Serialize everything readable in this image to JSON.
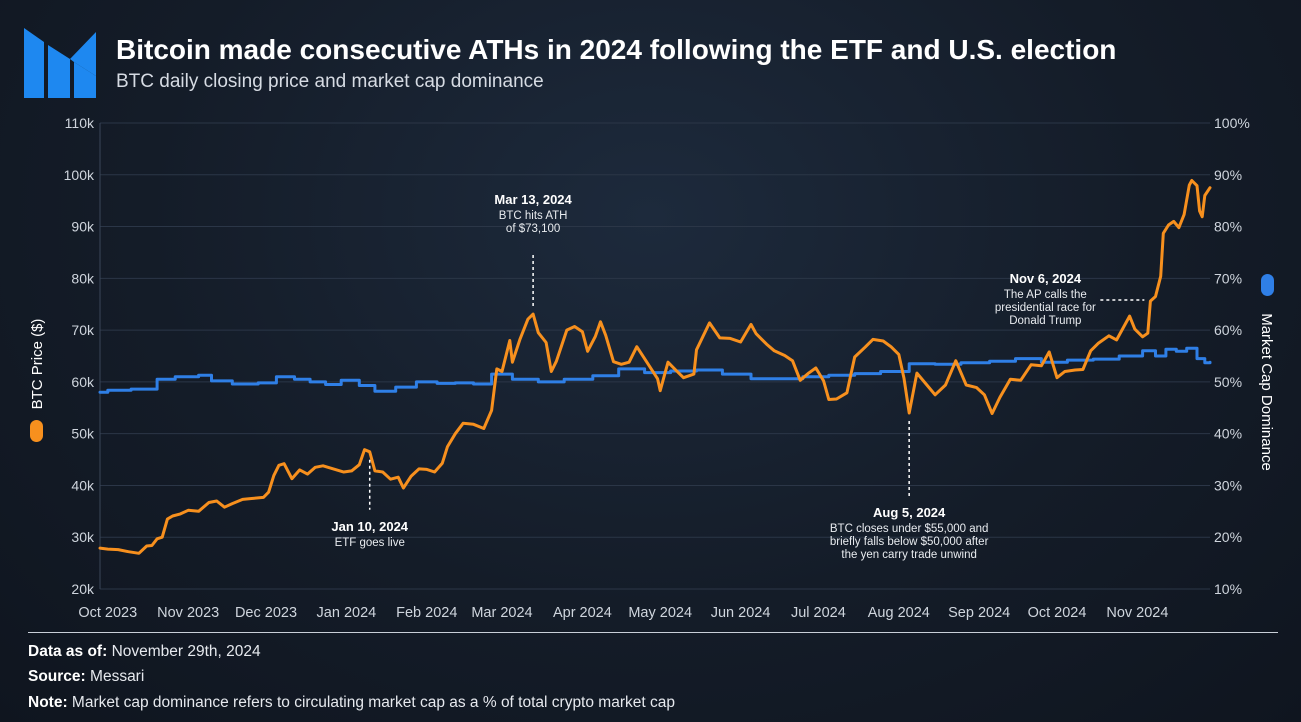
{
  "header": {
    "title": "Bitcoin made consecutive ATHs in 2024 following the ETF and U.S. election",
    "subtitle": "BTC daily closing price and market cap dominance"
  },
  "logo": {
    "icon": "messari-logo-icon",
    "color": "#1e88f0"
  },
  "colors": {
    "price": "#f7901e",
    "dominance": "#2f7fe6",
    "grid": "#2b3647",
    "axis_text": "#cfd5dd"
  },
  "chart_data": {
    "type": "line",
    "title": "Bitcoin made consecutive ATHs in 2024 following the ETF and U.S. election",
    "subtitle": "BTC daily closing price and market cap dominance",
    "xlabel": "",
    "y_left": {
      "label": "BTC Price ($)",
      "range": [
        20000,
        110000
      ],
      "ticks": [
        20000,
        30000,
        40000,
        50000,
        60000,
        70000,
        80000,
        90000,
        100000,
        110000
      ],
      "tick_labels": [
        "20k",
        "30k",
        "40k",
        "50k",
        "60k",
        "70k",
        "80k",
        "90k",
        "100k",
        "110k"
      ]
    },
    "y_right": {
      "label": "Market Cap Dominance",
      "range": [
        10,
        100
      ],
      "ticks": [
        10,
        20,
        30,
        40,
        50,
        60,
        70,
        80,
        90,
        100
      ],
      "tick_labels": [
        "10%",
        "20%",
        "30%",
        "40%",
        "50%",
        "60%",
        "70%",
        "80%",
        "90%",
        "100%"
      ]
    },
    "x_range": [
      "2023-09-28",
      "2024-11-29"
    ],
    "x_ticks": [
      {
        "date": "2023-10-01",
        "label": "Oct 2023"
      },
      {
        "date": "2023-11-01",
        "label": "Nov 2023"
      },
      {
        "date": "2023-12-01",
        "label": "Dec 2023"
      },
      {
        "date": "2024-01-01",
        "label": "Jan 2024"
      },
      {
        "date": "2024-02-01",
        "label": "Feb 2024"
      },
      {
        "date": "2024-03-01",
        "label": "Mar 2024"
      },
      {
        "date": "2024-04-01",
        "label": "Apr 2024"
      },
      {
        "date": "2024-05-01",
        "label": "May 2024"
      },
      {
        "date": "2024-06-01",
        "label": "Jun 2024"
      },
      {
        "date": "2024-07-01",
        "label": "Jul 2024"
      },
      {
        "date": "2024-08-01",
        "label": "Aug 2024"
      },
      {
        "date": "2024-09-01",
        "label": "Sep 2024"
      },
      {
        "date": "2024-10-01",
        "label": "Oct 2024"
      },
      {
        "date": "2024-11-01",
        "label": "Nov 2024"
      }
    ],
    "series": [
      {
        "name": "BTC Price ($)",
        "axis": "left",
        "points": [
          [
            "2023-09-28",
            27900
          ],
          [
            "2023-10-01",
            27700
          ],
          [
            "2023-10-05",
            27600
          ],
          [
            "2023-10-09",
            27200
          ],
          [
            "2023-10-13",
            26900
          ],
          [
            "2023-10-16",
            28300
          ],
          [
            "2023-10-18",
            28400
          ],
          [
            "2023-10-20",
            29700
          ],
          [
            "2023-10-22",
            30000
          ],
          [
            "2023-10-24",
            33500
          ],
          [
            "2023-10-26",
            34100
          ],
          [
            "2023-10-29",
            34500
          ],
          [
            "2023-11-01",
            35200
          ],
          [
            "2023-11-05",
            35000
          ],
          [
            "2023-11-09",
            36700
          ],
          [
            "2023-11-12",
            37000
          ],
          [
            "2023-11-15",
            35800
          ],
          [
            "2023-11-18",
            36500
          ],
          [
            "2023-11-22",
            37300
          ],
          [
            "2023-11-26",
            37500
          ],
          [
            "2023-11-30",
            37700
          ],
          [
            "2023-12-02",
            38700
          ],
          [
            "2023-12-04",
            41900
          ],
          [
            "2023-12-06",
            43900
          ],
          [
            "2023-12-08",
            44200
          ],
          [
            "2023-12-11",
            41300
          ],
          [
            "2023-12-14",
            43000
          ],
          [
            "2023-12-17",
            42200
          ],
          [
            "2023-12-20",
            43500
          ],
          [
            "2023-12-23",
            43800
          ],
          [
            "2023-12-27",
            43200
          ],
          [
            "2023-12-31",
            42600
          ],
          [
            "2024-01-03",
            42800
          ],
          [
            "2024-01-06",
            44000
          ],
          [
            "2024-01-08",
            46900
          ],
          [
            "2024-01-10",
            46500
          ],
          [
            "2024-01-12",
            42800
          ],
          [
            "2024-01-15",
            42600
          ],
          [
            "2024-01-18",
            41200
          ],
          [
            "2024-01-21",
            41600
          ],
          [
            "2024-01-23",
            39500
          ],
          [
            "2024-01-26",
            41800
          ],
          [
            "2024-01-29",
            43200
          ],
          [
            "2024-02-01",
            43100
          ],
          [
            "2024-02-04",
            42600
          ],
          [
            "2024-02-07",
            44300
          ],
          [
            "2024-02-09",
            47500
          ],
          [
            "2024-02-12",
            50000
          ],
          [
            "2024-02-15",
            52000
          ],
          [
            "2024-02-19",
            51800
          ],
          [
            "2024-02-23",
            51000
          ],
          [
            "2024-02-26",
            54500
          ],
          [
            "2024-02-28",
            62500
          ],
          [
            "2024-03-01",
            62000
          ],
          [
            "2024-03-04",
            68000
          ],
          [
            "2024-03-05",
            63800
          ],
          [
            "2024-03-08",
            68300
          ],
          [
            "2024-03-11",
            72100
          ],
          [
            "2024-03-13",
            73100
          ],
          [
            "2024-03-15",
            69500
          ],
          [
            "2024-03-18",
            67600
          ],
          [
            "2024-03-20",
            62000
          ],
          [
            "2024-03-22",
            64000
          ],
          [
            "2024-03-26",
            70000
          ],
          [
            "2024-03-29",
            70700
          ],
          [
            "2024-04-01",
            69700
          ],
          [
            "2024-04-03",
            65900
          ],
          [
            "2024-04-06",
            68800
          ],
          [
            "2024-04-08",
            71600
          ],
          [
            "2024-04-10",
            69000
          ],
          [
            "2024-04-13",
            63900
          ],
          [
            "2024-04-16",
            63400
          ],
          [
            "2024-04-19",
            63800
          ],
          [
            "2024-04-22",
            66800
          ],
          [
            "2024-04-26",
            63700
          ],
          [
            "2024-04-30",
            60600
          ],
          [
            "2024-05-01",
            58300
          ],
          [
            "2024-05-04",
            63800
          ],
          [
            "2024-05-07",
            62300
          ],
          [
            "2024-05-10",
            60800
          ],
          [
            "2024-05-14",
            61500
          ],
          [
            "2024-05-15",
            66200
          ],
          [
            "2024-05-20",
            71400
          ],
          [
            "2024-05-24",
            68500
          ],
          [
            "2024-05-28",
            68400
          ],
          [
            "2024-06-01",
            67700
          ],
          [
            "2024-06-05",
            71100
          ],
          [
            "2024-06-07",
            69300
          ],
          [
            "2024-06-11",
            67300
          ],
          [
            "2024-06-14",
            66000
          ],
          [
            "2024-06-18",
            65100
          ],
          [
            "2024-06-21",
            64100
          ],
          [
            "2024-06-24",
            60300
          ],
          [
            "2024-06-27",
            61600
          ],
          [
            "2024-06-30",
            62700
          ],
          [
            "2024-07-03",
            60200
          ],
          [
            "2024-07-05",
            56600
          ],
          [
            "2024-07-08",
            56700
          ],
          [
            "2024-07-12",
            57900
          ],
          [
            "2024-07-15",
            64800
          ],
          [
            "2024-07-19",
            66700
          ],
          [
            "2024-07-22",
            68200
          ],
          [
            "2024-07-26",
            67900
          ],
          [
            "2024-07-29",
            66800
          ],
          [
            "2024-08-01",
            65300
          ],
          [
            "2024-08-03",
            60700
          ],
          [
            "2024-08-05",
            54000
          ],
          [
            "2024-08-08",
            61700
          ],
          [
            "2024-08-12",
            59300
          ],
          [
            "2024-08-15",
            57500
          ],
          [
            "2024-08-19",
            59400
          ],
          [
            "2024-08-23",
            64100
          ],
          [
            "2024-08-27",
            59400
          ],
          [
            "2024-08-31",
            58900
          ],
          [
            "2024-09-03",
            57500
          ],
          [
            "2024-09-06",
            53900
          ],
          [
            "2024-09-09",
            57000
          ],
          [
            "2024-09-13",
            60500
          ],
          [
            "2024-09-17",
            60300
          ],
          [
            "2024-09-21",
            63300
          ],
          [
            "2024-09-25",
            63100
          ],
          [
            "2024-09-28",
            65800
          ],
          [
            "2024-10-01",
            60800
          ],
          [
            "2024-10-04",
            62000
          ],
          [
            "2024-10-08",
            62300
          ],
          [
            "2024-10-11",
            62400
          ],
          [
            "2024-10-14",
            66000
          ],
          [
            "2024-10-17",
            67500
          ],
          [
            "2024-10-21",
            68900
          ],
          [
            "2024-10-24",
            68100
          ],
          [
            "2024-10-29",
            72700
          ],
          [
            "2024-10-31",
            70200
          ],
          [
            "2024-11-03",
            68700
          ],
          [
            "2024-11-05",
            69400
          ],
          [
            "2024-11-06",
            75600
          ],
          [
            "2024-11-08",
            76500
          ],
          [
            "2024-11-10",
            80400
          ],
          [
            "2024-11-11",
            88700
          ],
          [
            "2024-11-13",
            90300
          ],
          [
            "2024-11-15",
            91000
          ],
          [
            "2024-11-17",
            89800
          ],
          [
            "2024-11-19",
            92300
          ],
          [
            "2024-11-21",
            98000
          ],
          [
            "2024-11-22",
            98900
          ],
          [
            "2024-11-24",
            97900
          ],
          [
            "2024-11-25",
            93000
          ],
          [
            "2024-11-26",
            91900
          ],
          [
            "2024-11-27",
            96000
          ],
          [
            "2024-11-29",
            97500
          ]
        ]
      },
      {
        "name": "Market Cap Dominance",
        "axis": "right",
        "points": [
          [
            "2023-09-28",
            48.0
          ],
          [
            "2023-10-01",
            48.4
          ],
          [
            "2023-10-10",
            48.6
          ],
          [
            "2023-10-20",
            50.5
          ],
          [
            "2023-10-27",
            51.0
          ],
          [
            "2023-11-05",
            51.3
          ],
          [
            "2023-11-10",
            50.2
          ],
          [
            "2023-11-18",
            49.6
          ],
          [
            "2023-11-28",
            49.8
          ],
          [
            "2023-12-05",
            51.0
          ],
          [
            "2023-12-12",
            50.5
          ],
          [
            "2023-12-18",
            50.0
          ],
          [
            "2023-12-24",
            49.5
          ],
          [
            "2023-12-30",
            50.3
          ],
          [
            "2024-01-06",
            49.3
          ],
          [
            "2024-01-12",
            48.2
          ],
          [
            "2024-01-20",
            49.0
          ],
          [
            "2024-01-28",
            50.0
          ],
          [
            "2024-02-05",
            49.7
          ],
          [
            "2024-02-12",
            49.8
          ],
          [
            "2024-02-19",
            49.6
          ],
          [
            "2024-02-26",
            51.5
          ],
          [
            "2024-03-05",
            50.5
          ],
          [
            "2024-03-15",
            50.0
          ],
          [
            "2024-03-25",
            50.5
          ],
          [
            "2024-04-05",
            51.2
          ],
          [
            "2024-04-15",
            52.5
          ],
          [
            "2024-04-25",
            51.8
          ],
          [
            "2024-05-05",
            52.1
          ],
          [
            "2024-05-15",
            52.3
          ],
          [
            "2024-05-25",
            51.5
          ],
          [
            "2024-06-05",
            50.6
          ],
          [
            "2024-06-15",
            50.6
          ],
          [
            "2024-06-25",
            51.0
          ],
          [
            "2024-07-05",
            51.3
          ],
          [
            "2024-07-15",
            51.6
          ],
          [
            "2024-07-25",
            52.0
          ],
          [
            "2024-08-05",
            53.5
          ],
          [
            "2024-08-15",
            53.4
          ],
          [
            "2024-08-25",
            53.7
          ],
          [
            "2024-09-05",
            54.0
          ],
          [
            "2024-09-15",
            54.5
          ],
          [
            "2024-09-25",
            53.8
          ],
          [
            "2024-10-05",
            54.2
          ],
          [
            "2024-10-15",
            54.4
          ],
          [
            "2024-10-25",
            55.0
          ],
          [
            "2024-11-03",
            56.0
          ],
          [
            "2024-11-08",
            55.0
          ],
          [
            "2024-11-12",
            56.3
          ],
          [
            "2024-11-16",
            55.9
          ],
          [
            "2024-11-20",
            56.5
          ],
          [
            "2024-11-24",
            54.5
          ],
          [
            "2024-11-27",
            53.7
          ],
          [
            "2024-11-29",
            53.8
          ]
        ]
      }
    ],
    "annotations": [
      {
        "date": "2024-01-10",
        "series": 0,
        "value": 46500,
        "dir": "down",
        "title": "Jan 10, 2024",
        "text": [
          "ETF goes live"
        ]
      },
      {
        "date": "2024-03-13",
        "series": 0,
        "value": 73100,
        "dir": "up",
        "title": "Mar 13, 2024",
        "text": [
          "BTC hits ATH",
          "of $73,100"
        ]
      },
      {
        "date": "2024-08-05",
        "series": 0,
        "value": 54000,
        "dir": "down",
        "title": "Aug 5, 2024",
        "text": [
          "BTC closes under $55,000 and",
          "briefly falls below $50,000 after",
          "the yen carry trade unwind"
        ]
      },
      {
        "date": "2024-11-06",
        "series": 0,
        "value": 75600,
        "dir": "left",
        "title": "Nov 6, 2024",
        "text": [
          "The AP calls the",
          "presidential race for",
          "Donald Trump"
        ]
      }
    ],
    "legend": [
      {
        "name": "BTC Price ($)",
        "position": "left"
      },
      {
        "name": "Market Cap Dominance",
        "position": "right"
      }
    ]
  },
  "footer": {
    "data_as_of_label": "Data as of:",
    "data_as_of_value": "November 29th, 2024",
    "source_label": "Source:",
    "source_value": "Messari",
    "note_label": "Note:",
    "note_value": "Market cap dominance refers to circulating market cap as a % of total crypto market cap"
  }
}
